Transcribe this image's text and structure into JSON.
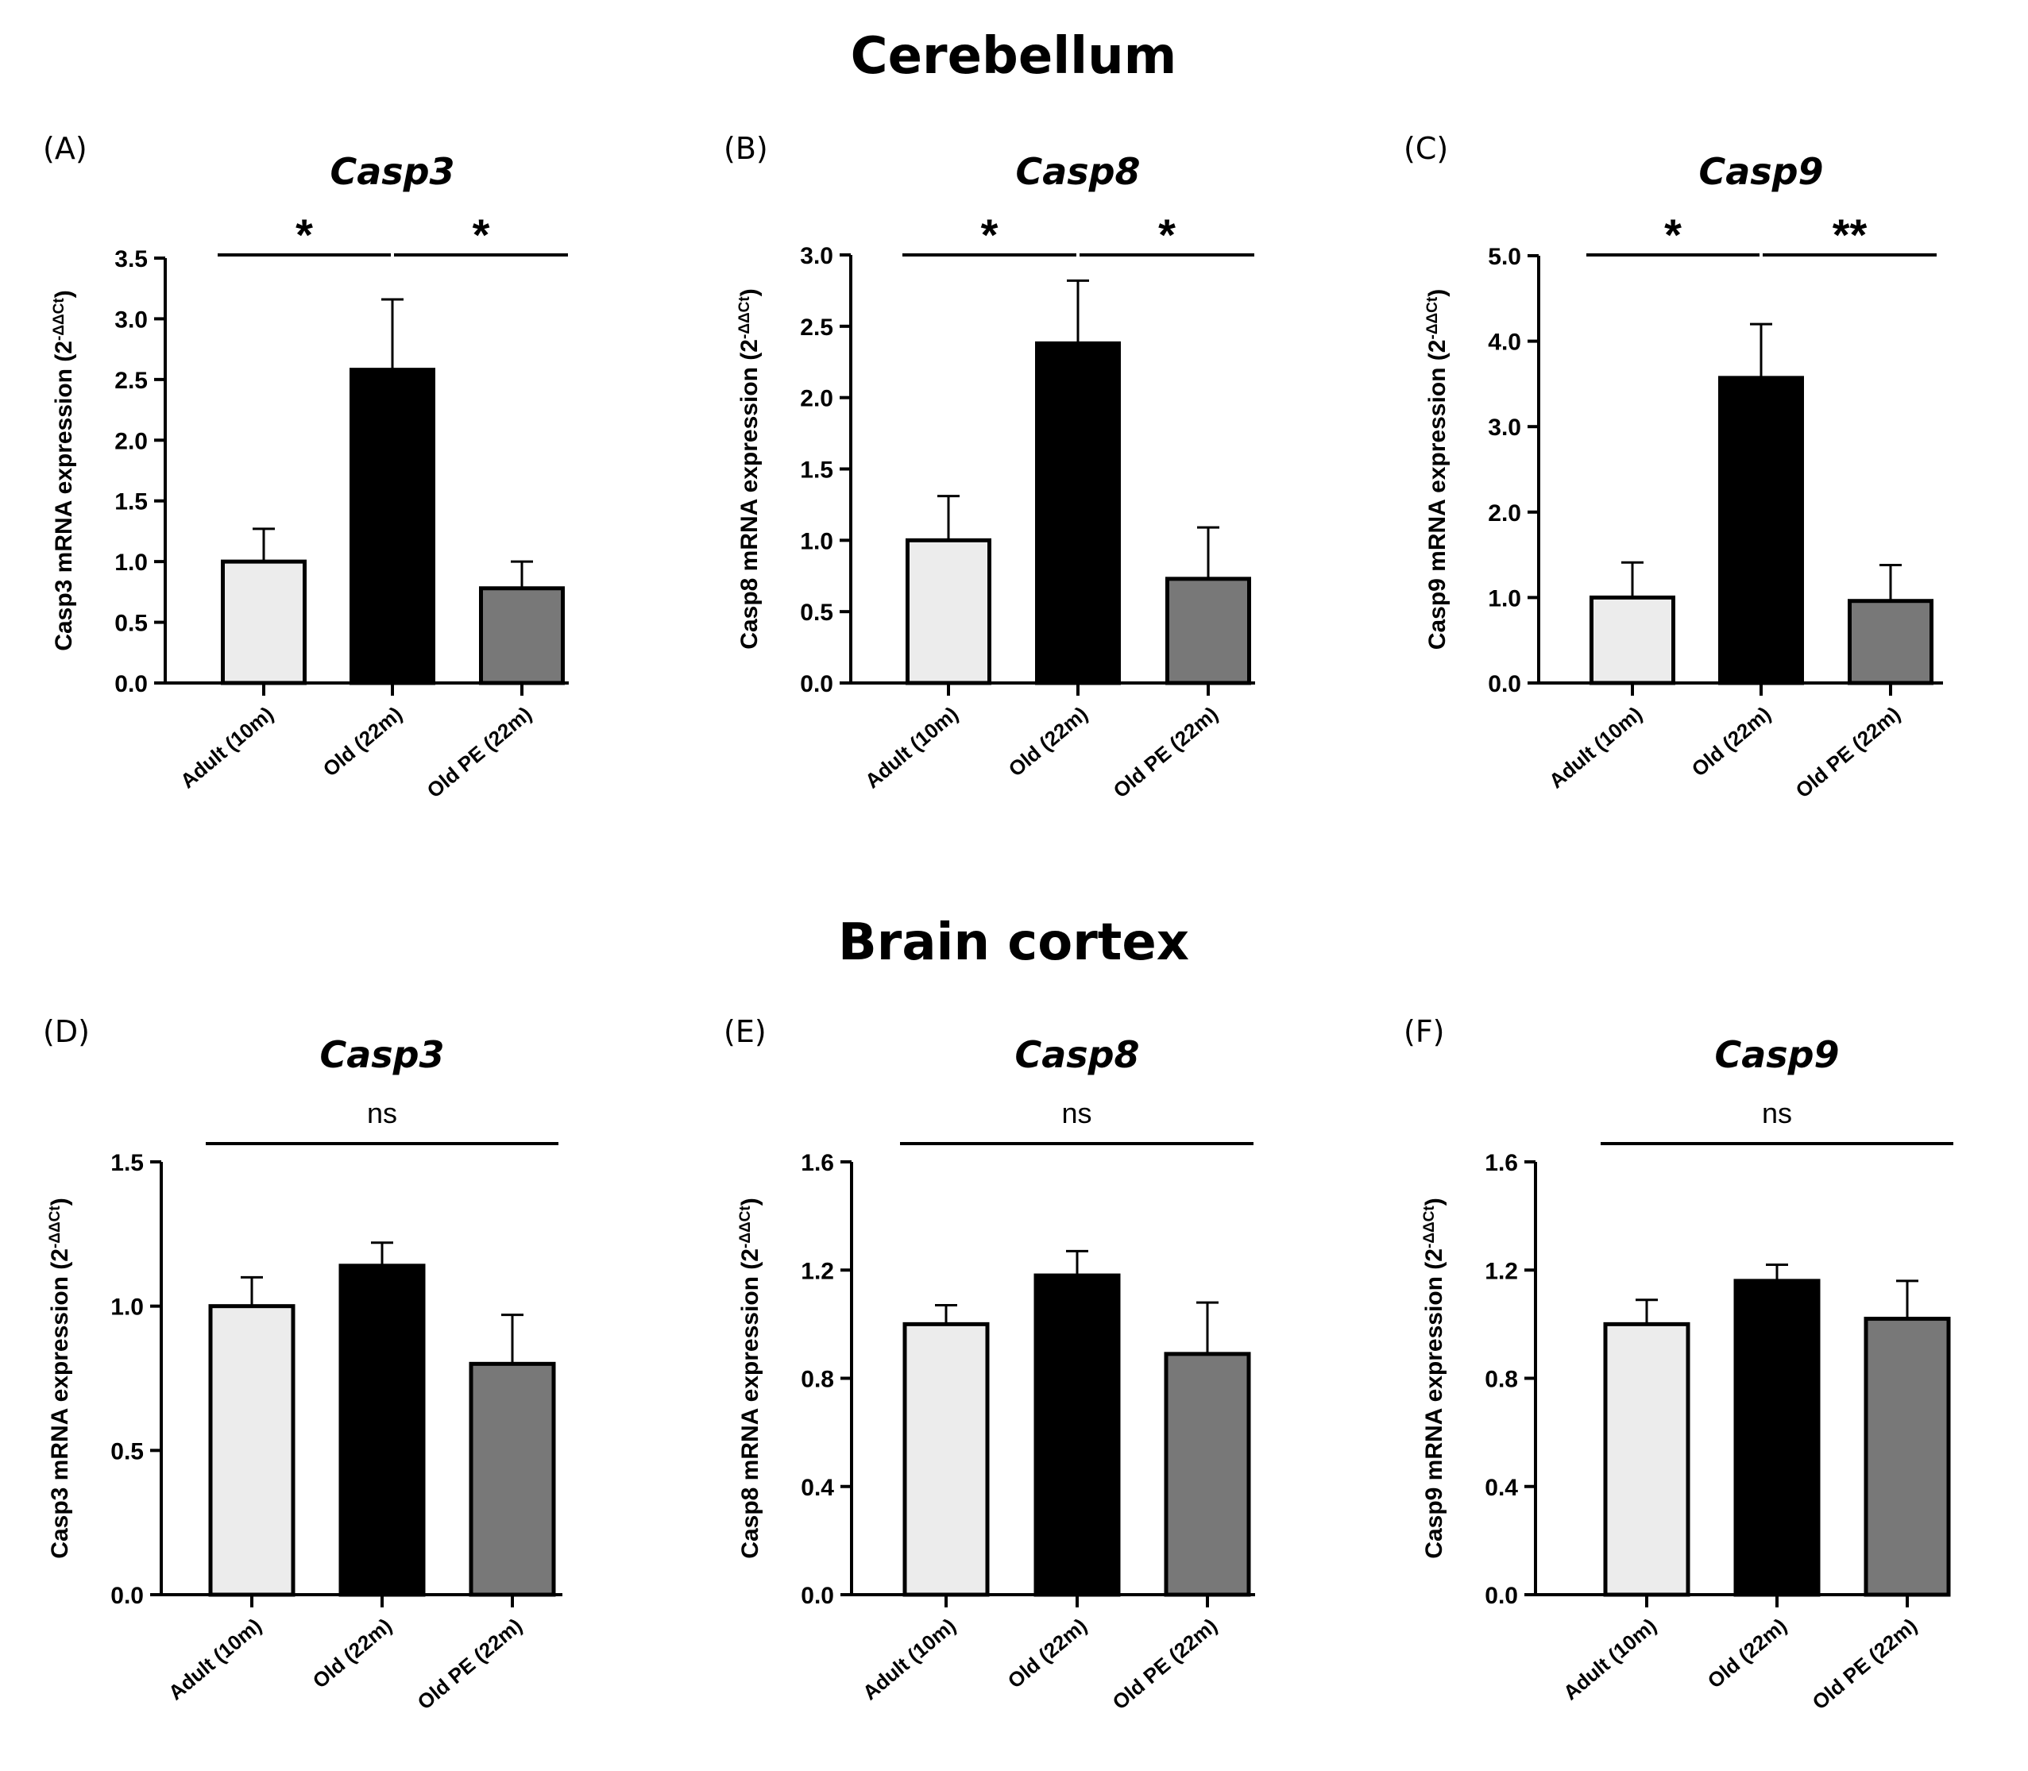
{
  "sections": [
    {
      "title": "Cerebellum"
    },
    {
      "title": "Brain cortex"
    }
  ],
  "colors": {
    "adult": "#ececec",
    "old": "#000000",
    "old_pe": "#787878",
    "outline": "#000000"
  },
  "chart_data": [
    {
      "type": "bar",
      "panel": "(A)",
      "title": "Casp3",
      "ylabel": "Casp3 mRNA expression (2",
      "ylabel_sup": "-ΔΔCt",
      "ylabel_close": ")",
      "categories": [
        "Adult (10m)",
        "Old (22m)",
        "Old PE (22m)"
      ],
      "values": [
        1.0,
        2.58,
        0.78
      ],
      "errors": [
        0.27,
        0.58,
        0.22
      ],
      "ylim": [
        0,
        3.5
      ],
      "yticks": [
        "0.0",
        "0.5",
        "1.0",
        "1.5",
        "2.0",
        "2.5",
        "3.0",
        "3.5"
      ],
      "ytick_values": [
        0,
        0.5,
        1.0,
        1.5,
        2.0,
        2.5,
        3.0,
        3.5
      ],
      "significance": [
        {
          "from": 0,
          "to": 1,
          "label": "*"
        },
        {
          "from": 1,
          "to": 2,
          "label": "*"
        }
      ]
    },
    {
      "type": "bar",
      "panel": "(B)",
      "title": "Casp8",
      "ylabel": "Casp8 mRNA expression (2",
      "ylabel_sup": "-ΔΔCt",
      "ylabel_close": ")",
      "categories": [
        "Adult (10m)",
        "Old (22m)",
        "Old PE (22m)"
      ],
      "values": [
        1.0,
        2.38,
        0.73
      ],
      "errors": [
        0.31,
        0.44,
        0.36
      ],
      "ylim": [
        0,
        3.0
      ],
      "yticks": [
        "0.0",
        "0.5",
        "1.0",
        "1.5",
        "2.0",
        "2.5",
        "3.0"
      ],
      "ytick_values": [
        0,
        0.5,
        1.0,
        1.5,
        2.0,
        2.5,
        3.0
      ],
      "significance": [
        {
          "from": 0,
          "to": 1,
          "label": "*"
        },
        {
          "from": 1,
          "to": 2,
          "label": "*"
        }
      ]
    },
    {
      "type": "bar",
      "panel": "(C)",
      "title": "Casp9",
      "ylabel": "Casp9 mRNA expression (2",
      "ylabel_sup": "-ΔΔCt",
      "ylabel_close": ")",
      "categories": [
        "Adult (10m)",
        "Old (22m)",
        "Old PE (22m)"
      ],
      "values": [
        1.0,
        3.57,
        0.96
      ],
      "errors": [
        0.41,
        0.63,
        0.42
      ],
      "ylim": [
        0,
        5.0
      ],
      "yticks": [
        "0.0",
        "1.0",
        "2.0",
        "3.0",
        "4.0",
        "5.0"
      ],
      "ytick_values": [
        0,
        1.0,
        2.0,
        3.0,
        4.0,
        5.0
      ],
      "significance": [
        {
          "from": 0,
          "to": 1,
          "label": "*"
        },
        {
          "from": 1,
          "to": 2,
          "label": "**"
        }
      ]
    },
    {
      "type": "bar",
      "panel": "(D)",
      "title": "Casp3",
      "ylabel": "Casp3 mRNA expression (2",
      "ylabel_sup": "-ΔΔCt",
      "ylabel_close": ")",
      "categories": [
        "Adult (10m)",
        "Old (22m)",
        "Old PE (22m)"
      ],
      "values": [
        1.0,
        1.14,
        0.8
      ],
      "errors": [
        0.1,
        0.08,
        0.17
      ],
      "ylim": [
        0,
        1.5
      ],
      "yticks": [
        "0.0",
        "0.5",
        "1.0",
        "1.5"
      ],
      "ytick_values": [
        0,
        0.5,
        1.0,
        1.5
      ],
      "significance": [
        {
          "from": 0,
          "to": 2,
          "label": "ns"
        }
      ]
    },
    {
      "type": "bar",
      "panel": "(E)",
      "title": "Casp8",
      "ylabel": "Casp8 mRNA expression (2",
      "ylabel_sup": "-ΔΔCt",
      "ylabel_close": ")",
      "categories": [
        "Adult (10m)",
        "Old (22m)",
        "Old PE (22m)"
      ],
      "values": [
        1.0,
        1.18,
        0.89
      ],
      "errors": [
        0.07,
        0.09,
        0.19
      ],
      "ylim": [
        0,
        1.6
      ],
      "yticks": [
        "0.0",
        "0.4",
        "0.8",
        "1.2",
        "1.6"
      ],
      "ytick_values": [
        0,
        0.4,
        0.8,
        1.2,
        1.6
      ],
      "significance": [
        {
          "from": 0,
          "to": 2,
          "label": "ns"
        }
      ]
    },
    {
      "type": "bar",
      "panel": "(F)",
      "title": "Casp9",
      "ylabel": "Casp9 mRNA expression (2",
      "ylabel_sup": "-ΔΔCt",
      "ylabel_close": ")",
      "categories": [
        "Adult (10m)",
        "Old (22m)",
        "Old PE (22m)"
      ],
      "values": [
        1.0,
        1.16,
        1.02
      ],
      "errors": [
        0.09,
        0.06,
        0.14
      ],
      "ylim": [
        0,
        1.6
      ],
      "yticks": [
        "0.0",
        "0.4",
        "0.8",
        "1.2",
        "1.6"
      ],
      "ytick_values": [
        0,
        0.4,
        0.8,
        1.2,
        1.6
      ],
      "significance": [
        {
          "from": 0,
          "to": 2,
          "label": "ns"
        }
      ]
    }
  ]
}
